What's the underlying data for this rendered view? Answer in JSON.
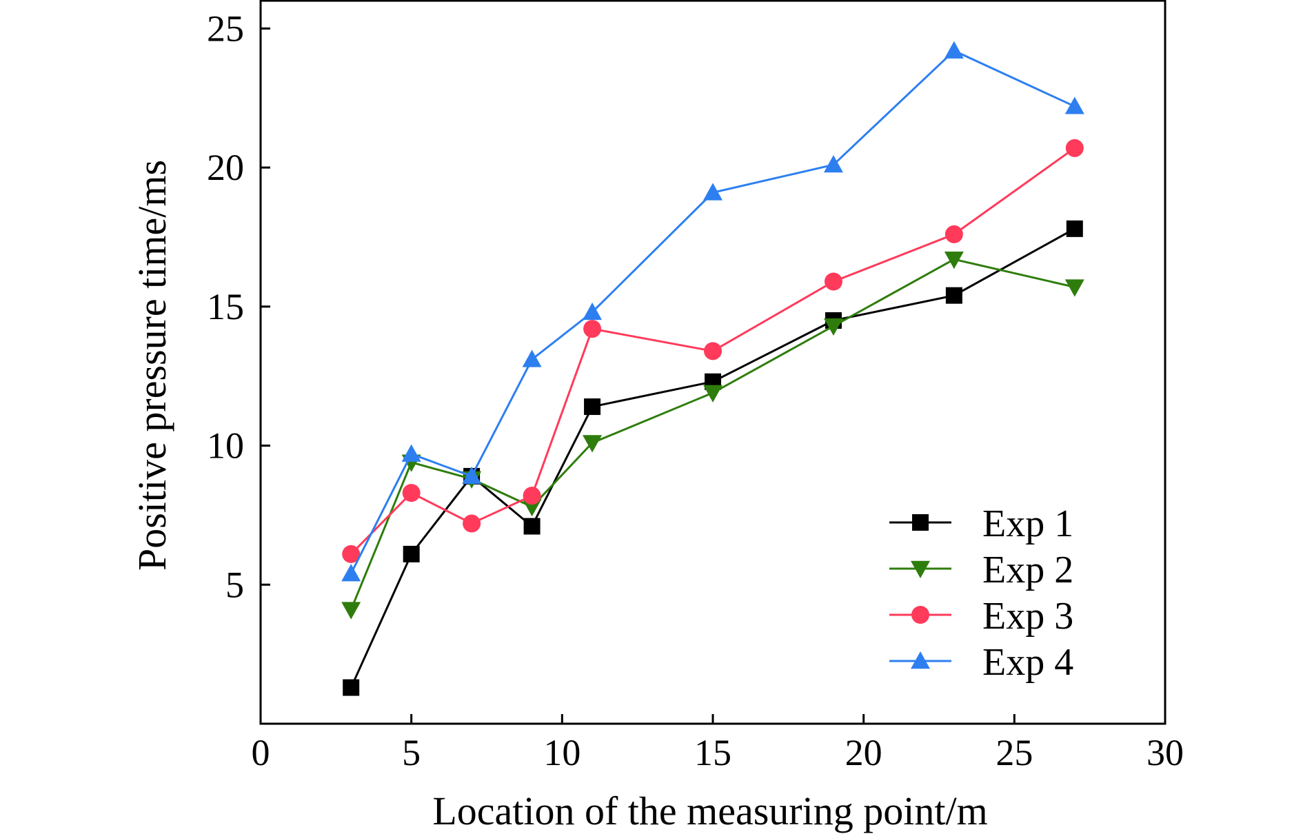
{
  "chart_data": {
    "type": "line",
    "title": "",
    "xlabel": "Location of the measuring point/m",
    "ylabel": "Positive pressure time/ms",
    "xlim": [
      0,
      30
    ],
    "ylim": [
      0,
      26
    ],
    "xticks": [
      0,
      5,
      10,
      15,
      20,
      25,
      30
    ],
    "yticks": [
      5,
      10,
      15,
      20,
      25
    ],
    "grid": false,
    "legend_position": "bottom-right",
    "x": [
      3,
      5,
      7,
      9,
      11,
      15,
      19,
      23,
      27
    ],
    "series": [
      {
        "name": "Exp 1",
        "color": "#000000",
        "marker": "square",
        "values": [
          1.3,
          6.1,
          8.9,
          7.1,
          11.4,
          12.3,
          14.5,
          15.4,
          17.8
        ]
      },
      {
        "name": "Exp 2",
        "color": "#2e7d0c",
        "marker": "triangle-down",
        "values": [
          4.1,
          9.4,
          8.8,
          7.8,
          10.1,
          11.9,
          14.3,
          16.7,
          15.7
        ]
      },
      {
        "name": "Exp 3",
        "color": "#ff3a5a",
        "marker": "circle",
        "values": [
          6.1,
          8.3,
          7.2,
          8.2,
          14.2,
          13.4,
          15.9,
          17.6,
          20.7
        ]
      },
      {
        "name": "Exp 4",
        "color": "#2d7ff0",
        "marker": "triangle-up",
        "values": [
          5.4,
          9.7,
          8.9,
          13.1,
          14.8,
          19.1,
          20.1,
          24.2,
          22.2
        ]
      }
    ]
  }
}
